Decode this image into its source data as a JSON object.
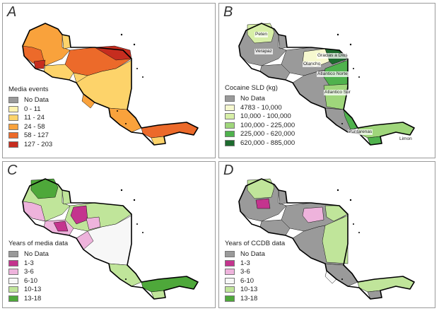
{
  "panels": [
    {
      "letter": "A",
      "legend_title": "Media events",
      "legend": [
        {
          "label": "No Data",
          "color": "#9a9a9a"
        },
        {
          "label": "0 - 11",
          "color": "#fff3b0"
        },
        {
          "label": "11 - 24",
          "color": "#fdd36a"
        },
        {
          "label": "24 - 58",
          "color": "#f9a23c"
        },
        {
          "label": "58 - 127",
          "color": "#ec6a2a"
        },
        {
          "label": "127 - 203",
          "color": "#c62d1f"
        }
      ]
    },
    {
      "letter": "B",
      "legend_title": "Cocaine SLD (kg)",
      "legend": [
        {
          "label": "No Data",
          "color": "#9a9a9a"
        },
        {
          "label": "4783 - 10,000",
          "color": "#f6f8cf"
        },
        {
          "label": "10,000 - 100,000",
          "color": "#d7efa7"
        },
        {
          "label": "100,000 - 225,000",
          "color": "#9fd67b"
        },
        {
          "label": "225,000 - 620,000",
          "color": "#4fb24d"
        },
        {
          "label": "620,000 - 885,000",
          "color": "#1d6b2e"
        }
      ],
      "place_labels": [
        "Peten",
        "Verapaz",
        "Gracias a Dios",
        "Olancho",
        "Atlantico Norte",
        "Atlantico Sur",
        "Puntarenas",
        "Limon"
      ]
    },
    {
      "letter": "C",
      "legend_title": "Years of media data",
      "legend": [
        {
          "label": "No Data",
          "color": "#9a9a9a"
        },
        {
          "label": "1-3",
          "color": "#c4348e"
        },
        {
          "label": "3-6",
          "color": "#eeb3dc"
        },
        {
          "label": "6-10",
          "color": "#f7f7f7"
        },
        {
          "label": "10-13",
          "color": "#c0e59a"
        },
        {
          "label": "13-18",
          "color": "#4ea83a"
        }
      ]
    },
    {
      "letter": "D",
      "legend_title": "Years of CCDB data",
      "legend": [
        {
          "label": "No Data",
          "color": "#9a9a9a"
        },
        {
          "label": "1-3",
          "color": "#c4348e"
        },
        {
          "label": "3-6",
          "color": "#eeb3dc"
        },
        {
          "label": "6-10",
          "color": "#f7f7f7"
        },
        {
          "label": "10-13",
          "color": "#c0e59a"
        },
        {
          "label": "13-18",
          "color": "#4ea83a"
        }
      ]
    }
  ]
}
